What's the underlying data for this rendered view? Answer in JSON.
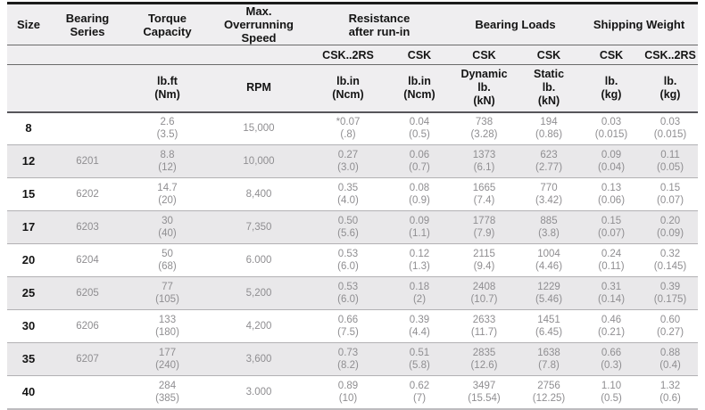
{
  "colors": {
    "header_bg": "#efeef0",
    "stripe_bg": "#e9e8ea",
    "top_border": "#1c1c1c",
    "header_text": "#141414",
    "data_text": "#8f8e91",
    "row_line": "#b2b1b4"
  },
  "header": {
    "size": "Size",
    "bearing_series": [
      "Bearing",
      "Series"
    ],
    "torque_capacity": [
      "Torque",
      "Capacity"
    ],
    "max_overrunning_speed": [
      "Max. Overrunning",
      "Speed"
    ],
    "resistance_after_run_in": [
      "Resistance",
      "after run-in"
    ],
    "bearing_loads": "Bearing Loads",
    "shipping_weight": "Shipping Weight",
    "variants": {
      "resistance_csk2rs": "CSK..2RS",
      "resistance_csk": "CSK",
      "loads_dynamic_csk": "CSK",
      "loads_static_csk": "CSK",
      "weight_csk": "CSK",
      "weight_csk2rs": "CSK..2RS"
    },
    "units": {
      "torque": [
        "lb.ft",
        "(Nm)"
      ],
      "speed": [
        "RPM"
      ],
      "resistance_csk2rs": [
        "lb.in",
        "(Ncm)"
      ],
      "resistance_csk": [
        "lb.in",
        "(Ncm)"
      ],
      "loads_dynamic": [
        "Dynamic",
        "lb.",
        "(kN)"
      ],
      "loads_static": [
        "Static",
        "lb.",
        "(kN)"
      ],
      "weight_csk": [
        "lb.",
        "(kg)"
      ],
      "weight_csk2rs": [
        "lb.",
        "(kg)"
      ]
    }
  },
  "rows": [
    {
      "size": "8",
      "series": "",
      "torque": [
        "2.6",
        "(3.5)"
      ],
      "speed": "15,000",
      "resistance_csk2rs": [
        "*0.07",
        "(.8)"
      ],
      "resistance_csk": [
        "0.04",
        "(0.5)"
      ],
      "load_dynamic": [
        "738",
        "(3.28)"
      ],
      "load_static": [
        "194",
        "(0.86)"
      ],
      "weight_csk": [
        "0.03",
        "(0.015)"
      ],
      "weight_csk2rs": [
        "0.03",
        "(0.015)"
      ]
    },
    {
      "size": "12",
      "series": "6201",
      "torque": [
        "8.8",
        "(12)"
      ],
      "speed": "10,000",
      "resistance_csk2rs": [
        "0.27",
        "(3.0)"
      ],
      "resistance_csk": [
        "0.06",
        "(0.7)"
      ],
      "load_dynamic": [
        "1373",
        "(6.1)"
      ],
      "load_static": [
        "623",
        "(2.77)"
      ],
      "weight_csk": [
        "0.09",
        "(0.04)"
      ],
      "weight_csk2rs": [
        "0.11",
        "(0.05)"
      ]
    },
    {
      "size": "15",
      "series": "6202",
      "torque": [
        "14.7",
        "(20)"
      ],
      "speed": "8,400",
      "resistance_csk2rs": [
        "0.35",
        "(4.0)"
      ],
      "resistance_csk": [
        "0.08",
        "(0.9)"
      ],
      "load_dynamic": [
        "1665",
        "(7.4)"
      ],
      "load_static": [
        "770",
        "(3.42)"
      ],
      "weight_csk": [
        "0.13",
        "(0.06)"
      ],
      "weight_csk2rs": [
        "0.15",
        "(0.07)"
      ]
    },
    {
      "size": "17",
      "series": "6203",
      "torque": [
        "30",
        "(40)"
      ],
      "speed": "7,350",
      "resistance_csk2rs": [
        "0.50",
        "(5.6)"
      ],
      "resistance_csk": [
        "0.09",
        "(1.1)"
      ],
      "load_dynamic": [
        "1778",
        "(7.9)"
      ],
      "load_static": [
        "885",
        "(3.8)"
      ],
      "weight_csk": [
        "0.15",
        "(0.07)"
      ],
      "weight_csk2rs": [
        "0.20",
        "(0.09)"
      ]
    },
    {
      "size": "20",
      "series": "6204",
      "torque": [
        "50",
        "(68)"
      ],
      "speed": "6.000",
      "resistance_csk2rs": [
        "0.53",
        "(6.0)"
      ],
      "resistance_csk": [
        "0.12",
        "(1.3)"
      ],
      "load_dynamic": [
        "2115",
        "(9.4)"
      ],
      "load_static": [
        "1004",
        "(4.46)"
      ],
      "weight_csk": [
        "0.24",
        "(0.11)"
      ],
      "weight_csk2rs": [
        "0.32",
        "(0.145)"
      ]
    },
    {
      "size": "25",
      "series": "6205",
      "torque": [
        "77",
        "(105)"
      ],
      "speed": "5,200",
      "resistance_csk2rs": [
        "0.53",
        "(6.0)"
      ],
      "resistance_csk": [
        "0.18",
        "(2)"
      ],
      "load_dynamic": [
        "2408",
        "(10.7)"
      ],
      "load_static": [
        "1229",
        "(5.46)"
      ],
      "weight_csk": [
        "0.31",
        "(0.14)"
      ],
      "weight_csk2rs": [
        "0.39",
        "(0.175)"
      ]
    },
    {
      "size": "30",
      "series": "6206",
      "torque": [
        "133",
        "(180)"
      ],
      "speed": "4,200",
      "resistance_csk2rs": [
        "0.66",
        "(7.5)"
      ],
      "resistance_csk": [
        "0.39",
        "(4.4)"
      ],
      "load_dynamic": [
        "2633",
        "(11.7)"
      ],
      "load_static": [
        "1451",
        "(6.45)"
      ],
      "weight_csk": [
        "0.46",
        "(0.21)"
      ],
      "weight_csk2rs": [
        "0.60",
        "(0.27)"
      ]
    },
    {
      "size": "35",
      "series": "6207",
      "torque": [
        "177",
        "(240)"
      ],
      "speed": "3,600",
      "resistance_csk2rs": [
        "0.73",
        "(8.2)"
      ],
      "resistance_csk": [
        "0.51",
        "(5.8)"
      ],
      "load_dynamic": [
        "2835",
        "(12.6)"
      ],
      "load_static": [
        "1638",
        "(7.8)"
      ],
      "weight_csk": [
        "0.66",
        "(0.3)"
      ],
      "weight_csk2rs": [
        "0.88",
        "(0.4)"
      ]
    },
    {
      "size": "40",
      "series": "",
      "torque": [
        "284",
        "(385)"
      ],
      "speed": "3.000",
      "resistance_csk2rs": [
        "0.89",
        "(10)"
      ],
      "resistance_csk": [
        "0.62",
        "(7)"
      ],
      "load_dynamic": [
        "3497",
        "(15.54)"
      ],
      "load_static": [
        "2756",
        "(12.25)"
      ],
      "weight_csk": [
        "1.10",
        "(0.5)"
      ],
      "weight_csk2rs": [
        "1.32",
        "(0.6)"
      ]
    }
  ]
}
